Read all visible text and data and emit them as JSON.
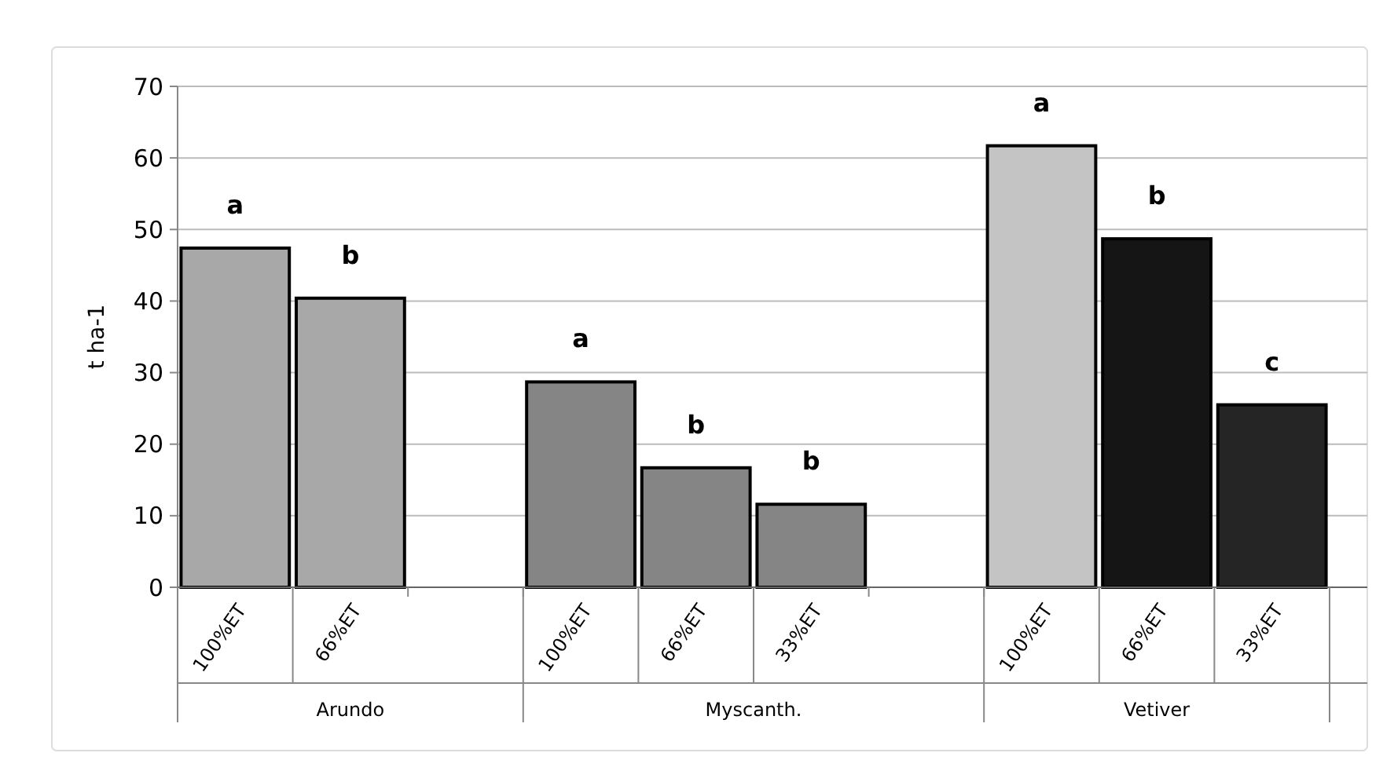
{
  "chart_data": {
    "type": "bar",
    "ylabel": "t ha-1",
    "categories": [
      "100%ET",
      "66%ET",
      null,
      "100%ET",
      "66%ET",
      "33%ET",
      null,
      "100%ET",
      "66%ET",
      "33%ET"
    ],
    "values": [
      47.4,
      40.4,
      null,
      28.7,
      16.7,
      11.6,
      null,
      61.7,
      48.7,
      25.5
    ],
    "colors": [
      "#a8a8a8",
      "#a8a8a8",
      null,
      "#858585",
      "#858585",
      "#858585",
      null,
      "#c4c4c4",
      "#151515",
      "#252525"
    ],
    "value_labels": [
      "a",
      "b",
      null,
      "a",
      "b",
      "b",
      null,
      "a",
      "b",
      "c"
    ],
    "annotations": [
      "Arundo",
      "Myscanth.",
      "Vetiver"
    ],
    "ylim": [
      0,
      70
    ],
    "yticks": [
      0,
      10,
      20,
      30,
      40,
      50,
      60,
      70
    ],
    "grid": "y"
  }
}
